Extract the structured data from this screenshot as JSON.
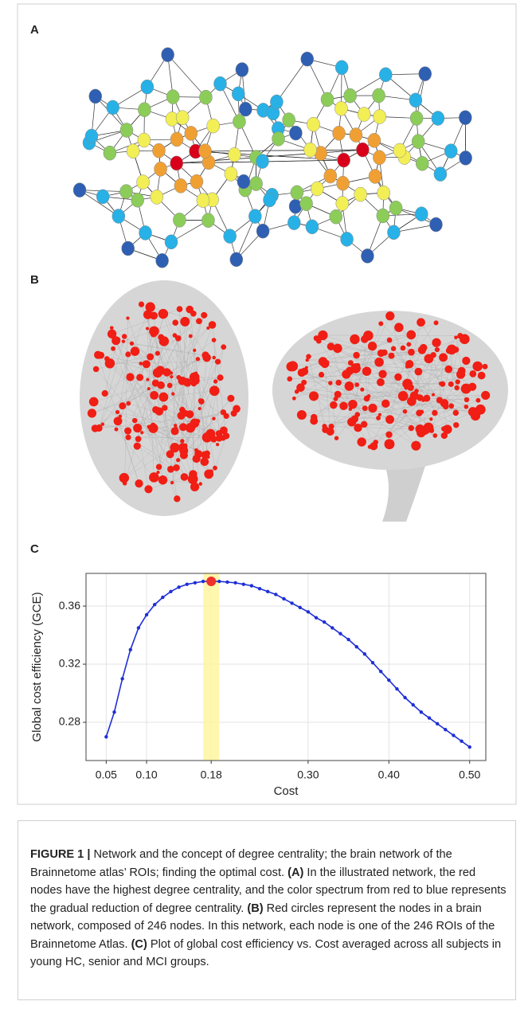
{
  "panel_labels": [
    "A",
    "B",
    "C"
  ],
  "chart_data": {
    "type": "line",
    "x_label": "Cost",
    "y_label": "Global cost efficiency (GCE)",
    "x": [
      0.05,
      0.06,
      0.07,
      0.08,
      0.09,
      0.1,
      0.11,
      0.12,
      0.13,
      0.14,
      0.15,
      0.16,
      0.17,
      0.18,
      0.19,
      0.2,
      0.21,
      0.22,
      0.23,
      0.24,
      0.25,
      0.26,
      0.27,
      0.28,
      0.29,
      0.3,
      0.31,
      0.32,
      0.33,
      0.34,
      0.35,
      0.36,
      0.37,
      0.38,
      0.39,
      0.4,
      0.41,
      0.42,
      0.43,
      0.44,
      0.45,
      0.46,
      0.47,
      0.48,
      0.49,
      0.5
    ],
    "series": [
      {
        "color": "#1f2fd6",
        "values": [
          0.27,
          0.287,
          0.31,
          0.33,
          0.345,
          0.354,
          0.361,
          0.366,
          0.37,
          0.373,
          0.375,
          0.376,
          0.377,
          0.377,
          0.377,
          0.3765,
          0.376,
          0.375,
          0.374,
          0.372,
          0.37,
          0.368,
          0.365,
          0.362,
          0.359,
          0.356,
          0.352,
          0.349,
          0.345,
          0.341,
          0.337,
          0.332,
          0.327,
          0.321,
          0.315,
          0.309,
          0.303,
          0.297,
          0.292,
          0.287,
          0.283,
          0.279,
          0.275,
          0.271,
          0.267,
          0.263
        ]
      }
    ],
    "highlight_x": 0.18,
    "highlight_color": "#fff59a",
    "highlight_point_color": "#f0302a",
    "xlim": [
      0.025,
      0.52
    ],
    "ylim": [
      0.2537,
      0.3825
    ],
    "xticks": [
      0.05,
      {
        "value": 0.1,
        "label": "0.10"
      },
      0.18,
      {
        "value": 0.3,
        "label": "0.30"
      },
      {
        "value": 0.4,
        "label": "0.40"
      },
      {
        "value": 0.5,
        "label": "0.50"
      }
    ],
    "yticks": [
      0.28,
      0.32,
      0.36
    ],
    "grid": true
  },
  "caption": [
    {
      "text": "FIGURE 1 | ",
      "bold": true
    },
    {
      "text": "Network and the concept of degree centrality; the brain network of the Brainnetome atlas’ ROIs; finding the optimal cost. ",
      "bold": false
    },
    {
      "text": "(A)",
      "bold": true
    },
    {
      "text": " In the illustrated network, the red nodes have the highest degree centrality, and the color spectrum from red to blue represents the gradual reduction of degree centrality. ",
      "bold": false
    },
    {
      "text": "(B)",
      "bold": true
    },
    {
      "text": " Red circles represent the nodes in a brain network, composed of 246 nodes. In this network, each node is one of the 246 ROIs of the Brainnetome Atlas. ",
      "bold": false
    },
    {
      "text": "(C)",
      "bold": true
    },
    {
      "text": " Plot of global cost efficiency vs. Cost averaged across all subjects in young HC, senior and MCI groups.",
      "bold": false
    }
  ]
}
